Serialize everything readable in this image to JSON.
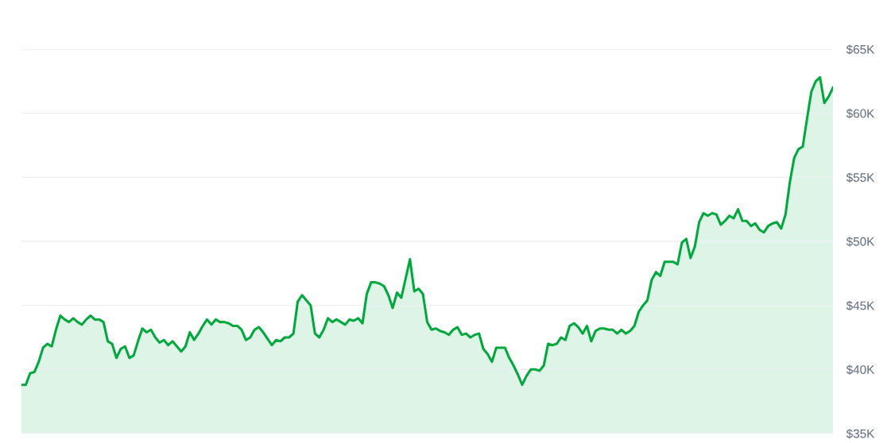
{
  "chart_data": {
    "type": "area",
    "categories": [
      null,
      null,
      null,
      null,
      null,
      null,
      null,
      null,
      null,
      null,
      null,
      null,
      null,
      null,
      null,
      null,
      null,
      null,
      null,
      null,
      null,
      null,
      null,
      null,
      null,
      null,
      null,
      null,
      null,
      null,
      null,
      null,
      null,
      null,
      null,
      null,
      null,
      null,
      null,
      null,
      null,
      null,
      null,
      null,
      null,
      null,
      null,
      null,
      null,
      null,
      null,
      null,
      null,
      null,
      null,
      null,
      null,
      null,
      null,
      null,
      null,
      null,
      null,
      null,
      null,
      null,
      null,
      null,
      null,
      null,
      null,
      null,
      null,
      null,
      null,
      null,
      null,
      null,
      null,
      null,
      null,
      null,
      null,
      null,
      null,
      null,
      null,
      null,
      null,
      null,
      null,
      null,
      null,
      null,
      null,
      null,
      null,
      null,
      null,
      null,
      null,
      null,
      null,
      null,
      null,
      null,
      null,
      null,
      null,
      null,
      null,
      null,
      null,
      null,
      null,
      null,
      null,
      null,
      null,
      null,
      null,
      null,
      null,
      null,
      null,
      null,
      null,
      null,
      null,
      null,
      null,
      null,
      null,
      null,
      null,
      null,
      null,
      null,
      null,
      null,
      null,
      null,
      null,
      null,
      null,
      null,
      null,
      null,
      null,
      null,
      null,
      null,
      null,
      null,
      null,
      null,
      null,
      null,
      null,
      null,
      null,
      null,
      null,
      null,
      null,
      null,
      null,
      null,
      null,
      null,
      null,
      null,
      null,
      null,
      null,
      null,
      null,
      null,
      null,
      null,
      null,
      null,
      null,
      null,
      null,
      null,
      null,
      null,
      null
    ],
    "series": [
      {
        "color": "#00a83e",
        "values": [
          38800,
          38800,
          39700,
          39800,
          40600,
          41700,
          42000,
          41800,
          43100,
          44200,
          43900,
          43700,
          44000,
          43700,
          43500,
          43900,
          44200,
          43900,
          43900,
          43700,
          42200,
          42000,
          40900,
          41600,
          41800,
          40900,
          41100,
          42200,
          43200,
          42900,
          43100,
          42500,
          42100,
          42300,
          41900,
          42200,
          41800,
          41400,
          41800,
          42900,
          42300,
          42800,
          43400,
          43900,
          43500,
          43900,
          43700,
          43700,
          43600,
          43400,
          43400,
          43100,
          42300,
          42500,
          43100,
          43300,
          42900,
          42400,
          41900,
          42300,
          42200,
          42500,
          42500,
          42800,
          45300,
          45800,
          45400,
          45000,
          42800,
          42500,
          43100,
          44000,
          43700,
          43900,
          43700,
          43500,
          43900,
          43800,
          44000,
          43600,
          45900,
          46800,
          46800,
          46700,
          46500,
          45800,
          44800,
          46000,
          45600,
          47100,
          48600,
          46100,
          46300,
          45900,
          43700,
          43100,
          43200,
          43000,
          42900,
          42700,
          43100,
          43300,
          42700,
          42800,
          42500,
          42700,
          42800,
          41600,
          41200,
          40600,
          41700,
          41700,
          41700,
          40900,
          40300,
          39600,
          38800,
          39500,
          40000,
          40000,
          39900,
          40300,
          42000,
          41900,
          42000,
          42500,
          42300,
          43400,
          43600,
          43300,
          42800,
          43400,
          42200,
          43000,
          43200,
          43200,
          43100,
          43100,
          42800,
          43100,
          42800,
          43000,
          43400,
          44500,
          45000,
          45400,
          47000,
          47600,
          47300,
          48400,
          48400,
          48400,
          48200,
          49900,
          50200,
          48700,
          49600,
          51500,
          52200,
          52000,
          52200,
          52100,
          51300,
          51600,
          52000,
          51800,
          52500,
          51600,
          51600,
          51200,
          51400,
          50900,
          50700,
          51200,
          51400,
          51500,
          51000,
          52100,
          54600,
          56500,
          57200,
          57400,
          59600,
          61700,
          62500,
          62800,
          60800,
          61300,
          62000
        ]
      }
    ],
    "ylim": [
      35000,
      65000
    ],
    "yticks": [
      {
        "value": 35000,
        "label": "$35K"
      },
      {
        "value": 40000,
        "label": "$40K"
      },
      {
        "value": 45000,
        "label": "$45K"
      },
      {
        "value": 50000,
        "label": "$50K"
      },
      {
        "value": 55000,
        "label": "$55K"
      },
      {
        "value": 60000,
        "label": "$60K"
      },
      {
        "value": 65000,
        "label": "$65K"
      }
    ],
    "grid": "y",
    "tick_labels": "y",
    "legend": false
  }
}
